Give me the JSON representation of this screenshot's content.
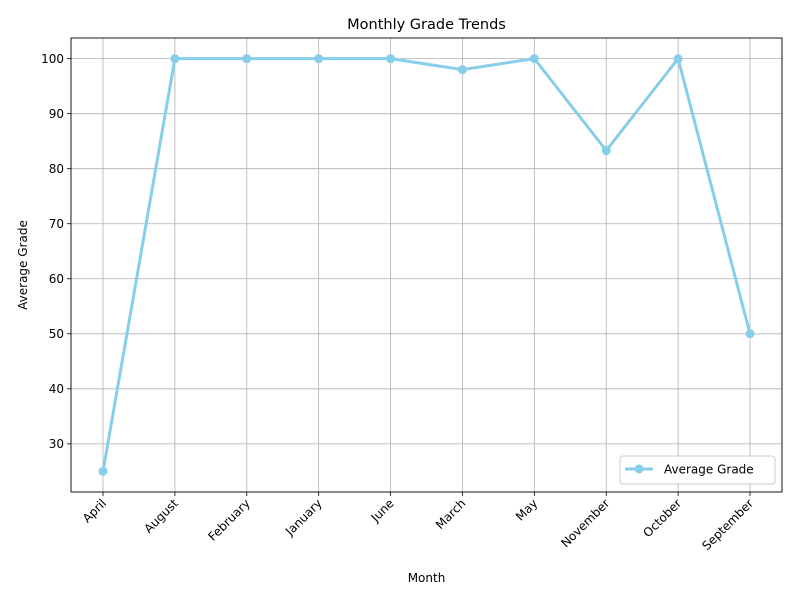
{
  "chart_data": {
    "type": "line",
    "title": "Monthly Grade Trends",
    "xlabel": "Month",
    "ylabel": "Average Grade",
    "categories": [
      "April",
      "August",
      "February",
      "January",
      "June",
      "March",
      "May",
      "November",
      "October",
      "September"
    ],
    "series": [
      {
        "name": "Average Grade",
        "values": [
          25,
          100,
          100,
          100,
          100,
          98,
          100,
          83.3,
          100,
          50
        ],
        "color": "#87ceeb",
        "marker": "circle"
      }
    ],
    "ylim": [
      21.25,
      103.75
    ],
    "yticks": [
      30,
      40,
      50,
      60,
      70,
      80,
      90,
      100
    ],
    "grid": true,
    "legend_position": "lower-right",
    "x_tick_rotation": 45
  }
}
